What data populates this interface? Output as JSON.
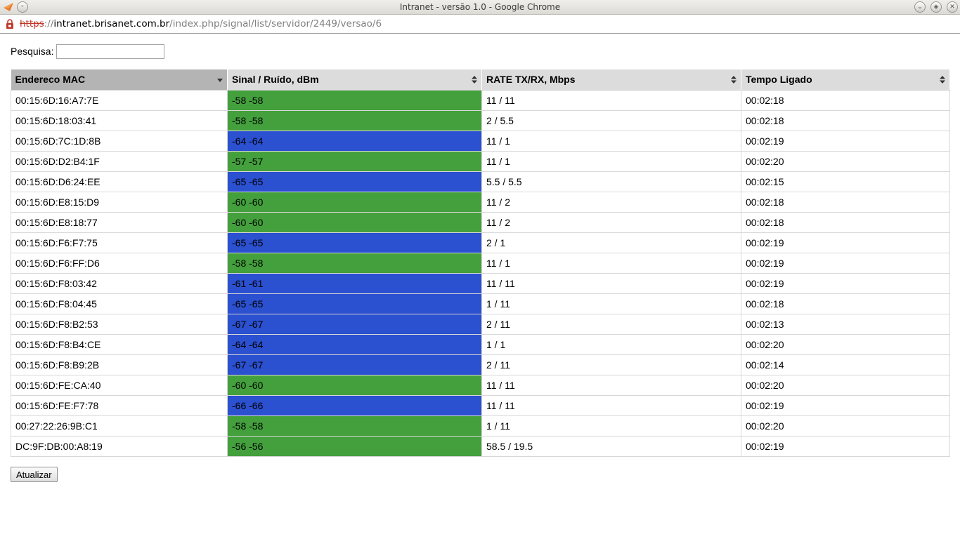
{
  "window": {
    "title": "Intranet - versão 1.0 - Google Chrome",
    "controls": [
      "minimize-icon",
      "maximize-icon",
      "close-icon"
    ]
  },
  "browser": {
    "url_scheme": "https",
    "url_sep": "://",
    "url_host": "intranet.brisanet.com.br",
    "url_path": "/index.php/signal/list/servidor/2449/versao/6"
  },
  "search": {
    "label": "Pesquisa:",
    "value": "",
    "placeholder": ""
  },
  "table": {
    "columns": [
      {
        "label": "Endereco MAC",
        "sort": "descending"
      },
      {
        "label": "Sinal / Ruído, dBm",
        "sort": "none"
      },
      {
        "label": "RATE TX/RX, Mbps",
        "sort": "none"
      },
      {
        "label": "Tempo Ligado",
        "sort": "none"
      }
    ],
    "rows": [
      {
        "mac": "00:15:6D:16:A7:7E",
        "signal": "-58 -58",
        "quality": "good",
        "rate": "11 / 11",
        "uptime": "00:02:18"
      },
      {
        "mac": "00:15:6D:18:03:41",
        "signal": "-58 -58",
        "quality": "good",
        "rate": "2 / 5.5",
        "uptime": "00:02:18"
      },
      {
        "mac": "00:15:6D:7C:1D:8B",
        "signal": "-64 -64",
        "quality": "weak",
        "rate": "11 / 1",
        "uptime": "00:02:19"
      },
      {
        "mac": "00:15:6D:D2:B4:1F",
        "signal": "-57 -57",
        "quality": "good",
        "rate": "11 / 1",
        "uptime": "00:02:20"
      },
      {
        "mac": "00:15:6D:D6:24:EE",
        "signal": "-65 -65",
        "quality": "weak",
        "rate": "5.5 / 5.5",
        "uptime": "00:02:15"
      },
      {
        "mac": "00:15:6D:E8:15:D9",
        "signal": "-60 -60",
        "quality": "good",
        "rate": "11 / 2",
        "uptime": "00:02:18"
      },
      {
        "mac": "00:15:6D:E8:18:77",
        "signal": "-60 -60",
        "quality": "good",
        "rate": "11 / 2",
        "uptime": "00:02:18"
      },
      {
        "mac": "00:15:6D:F6:F7:75",
        "signal": "-65 -65",
        "quality": "weak",
        "rate": "2 / 1",
        "uptime": "00:02:19"
      },
      {
        "mac": "00:15:6D:F6:FF:D6",
        "signal": "-58 -58",
        "quality": "good",
        "rate": "11 / 1",
        "uptime": "00:02:19"
      },
      {
        "mac": "00:15:6D:F8:03:42",
        "signal": "-61 -61",
        "quality": "weak",
        "rate": "11 / 11",
        "uptime": "00:02:19"
      },
      {
        "mac": "00:15:6D:F8:04:45",
        "signal": "-65 -65",
        "quality": "weak",
        "rate": "1 / 11",
        "uptime": "00:02:18"
      },
      {
        "mac": "00:15:6D:F8:B2:53",
        "signal": "-67 -67",
        "quality": "weak",
        "rate": "2 / 11",
        "uptime": "00:02:13"
      },
      {
        "mac": "00:15:6D:F8:B4:CE",
        "signal": "-64 -64",
        "quality": "weak",
        "rate": "1 / 1",
        "uptime": "00:02:20"
      },
      {
        "mac": "00:15:6D:F8:B9:2B",
        "signal": "-67 -67",
        "quality": "weak",
        "rate": "2 / 11",
        "uptime": "00:02:14"
      },
      {
        "mac": "00:15:6D:FE:CA:40",
        "signal": "-60 -60",
        "quality": "good",
        "rate": "11 / 11",
        "uptime": "00:02:20"
      },
      {
        "mac": "00:15:6D:FE:F7:78",
        "signal": "-66 -66",
        "quality": "weak",
        "rate": "11 / 11",
        "uptime": "00:02:19"
      },
      {
        "mac": "00:27:22:26:9B:C1",
        "signal": "-58 -58",
        "quality": "good",
        "rate": "1 / 11",
        "uptime": "00:02:20"
      },
      {
        "mac": "DC:9F:DB:00:A8:19",
        "signal": "-56 -56",
        "quality": "good",
        "rate": "58.5 / 19.5",
        "uptime": "00:02:19"
      }
    ]
  },
  "colors": {
    "signal_good": "#43a03c",
    "signal_weak": "#2b50d0",
    "header_bg": "#dcdcdc",
    "header_sorted_bg": "#b4b4b4"
  },
  "actions": {
    "refresh_label": "Atualizar"
  }
}
